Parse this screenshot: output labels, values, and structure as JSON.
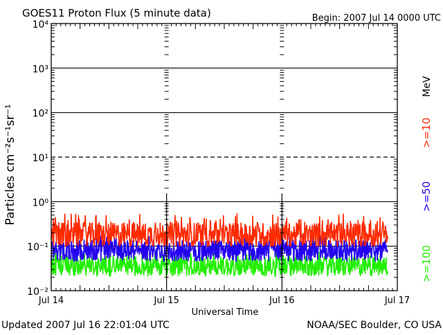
{
  "chart_data": {
    "type": "line",
    "title": "GOES11 Proton Flux (5 minute data)",
    "begin_label": "Begin: 2007 Jul 14 0000 UTC",
    "xlabel": "Universal Time",
    "ylabel": "Particles cm⁻²s⁻¹sr⁻¹",
    "y_scale": "log",
    "ylim": [
      0.01,
      10000
    ],
    "y_tick_labels": [
      "10⁻²",
      "10⁻¹",
      "10⁰",
      "10¹",
      "10²",
      "10³",
      "10⁴"
    ],
    "x_range_days": [
      "2007-07-14",
      "2007-07-17"
    ],
    "x_tick_labels": [
      "Jul 14",
      "Jul 15",
      "Jul 16",
      "Jul 17"
    ],
    "x_data_end": "2007-07-16 22:00",
    "reference_levels": [
      {
        "value": 10,
        "style": "dashed"
      }
    ],
    "series_label_unit": "MeV",
    "series": [
      {
        "name": ">=10",
        "color": "#ff2a00",
        "typical_value": 0.18,
        "value_range": [
          0.1,
          0.55
        ]
      },
      {
        "name": ">=50",
        "color": "#2200ee",
        "typical_value": 0.08,
        "value_range": [
          0.04,
          0.18
        ]
      },
      {
        "name": ">=100",
        "color": "#22ee00",
        "typical_value": 0.035,
        "value_range": [
          0.02,
          0.08
        ]
      }
    ],
    "grid": "horizontal at decades",
    "legend": "right side, rotated"
  },
  "footer": {
    "updated": "Updated 2007 Jul 16 22:01:04 UTC",
    "source": "NOAA/SEC Boulder, CO USA"
  }
}
